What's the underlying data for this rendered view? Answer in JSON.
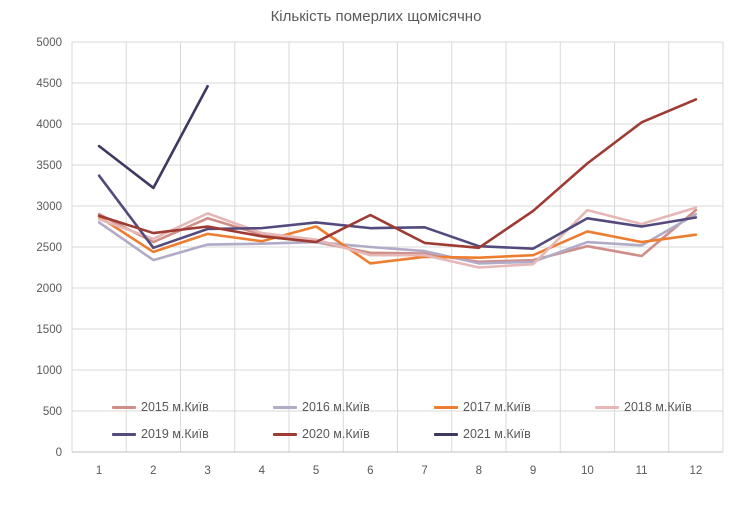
{
  "chart_data": {
    "type": "line",
    "title": "Кількість померлих щомісячно",
    "xlabel": "",
    "ylabel": "",
    "x": [
      1,
      2,
      3,
      4,
      5,
      6,
      7,
      8,
      9,
      10,
      11,
      12
    ],
    "ylim": [
      0,
      5000
    ],
    "ytick_step": 500,
    "grid": true,
    "legend_position": "bottom-inside-two-rows",
    "series": [
      {
        "name": "2015 м.Київ",
        "color": "#cf8e88",
        "values": [
          2900,
          2560,
          2850,
          2650,
          2560,
          2430,
          2420,
          2320,
          2340,
          2510,
          2390,
          2950
        ]
      },
      {
        "name": "2016 м.Київ",
        "color": "#b2abc7",
        "values": [
          2800,
          2340,
          2530,
          2540,
          2560,
          2500,
          2450,
          2300,
          2320,
          2560,
          2520,
          2900
        ]
      },
      {
        "name": "2017 м.Київ",
        "color": "#ed7d31",
        "values": [
          2870,
          2440,
          2660,
          2570,
          2750,
          2300,
          2380,
          2370,
          2400,
          2690,
          2560,
          2650
        ]
      },
      {
        "name": "2018 м.Київ",
        "color": "#e5b8b7",
        "values": [
          2840,
          2600,
          2910,
          2670,
          2590,
          2400,
          2400,
          2250,
          2290,
          2950,
          2780,
          2980
        ]
      },
      {
        "name": "2019 м.Київ",
        "color": "#544a7d",
        "values": [
          3370,
          2490,
          2720,
          2730,
          2800,
          2730,
          2740,
          2510,
          2480,
          2850,
          2750,
          2860
        ]
      },
      {
        "name": "2020 м.Київ",
        "color": "#9e3b33",
        "values": [
          2880,
          2670,
          2750,
          2630,
          2560,
          2890,
          2550,
          2490,
          2940,
          3520,
          4020,
          4300
        ]
      },
      {
        "name": "2021 м.Київ",
        "color": "#3f3861",
        "values": [
          3730,
          3220,
          4460,
          null,
          null,
          null,
          null,
          null,
          null,
          null,
          null,
          null
        ]
      }
    ]
  },
  "colors": {
    "background": "#ffffff",
    "title_text": "#595959",
    "axis_text": "#595959",
    "gridline": "#d9d9d9",
    "axis_line": "#bfbfbf"
  }
}
